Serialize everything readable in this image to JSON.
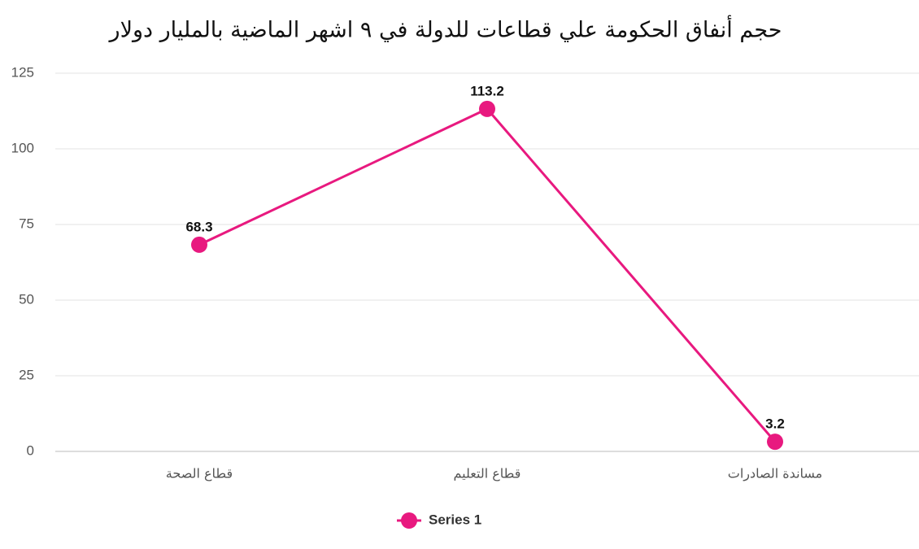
{
  "chart_data": {
    "type": "line",
    "title": "حجم أنفاق الحكومة علي قطاعات للدولة في ٩ اشهر الماضية بالمليار دولار",
    "categories": [
      "قطاع الصحة",
      "قطاع التعليم",
      "مساندة الصادرات"
    ],
    "series": [
      {
        "name": "Series 1",
        "color": "#e8197f",
        "values": [
          68.3,
          113.2,
          3.2
        ]
      }
    ],
    "ylim": [
      0,
      125
    ],
    "yticks": [
      0,
      25,
      50,
      75,
      100,
      125
    ],
    "grid": true,
    "legend": "bottom"
  }
}
